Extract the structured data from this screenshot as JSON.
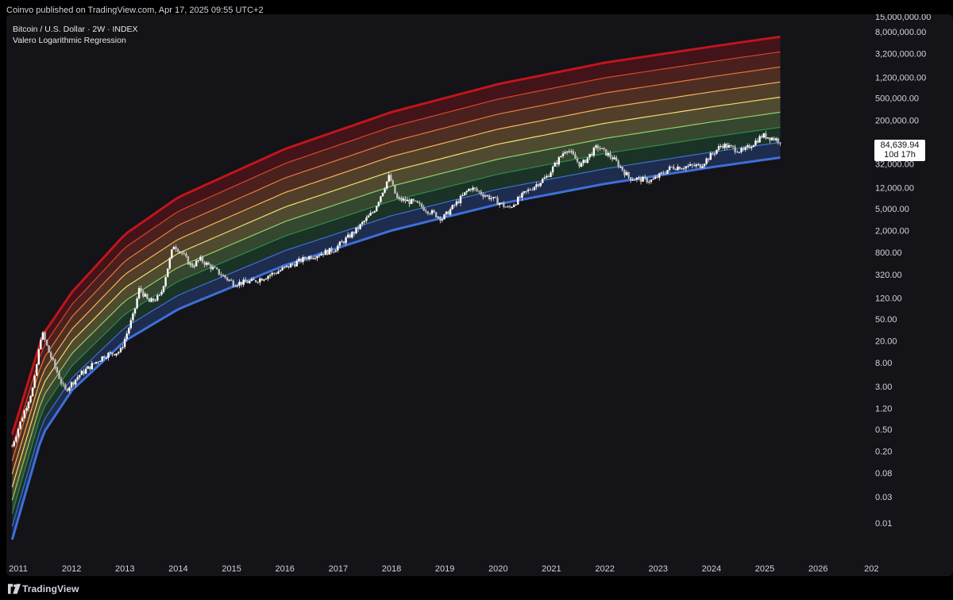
{
  "header": {
    "publisher_line": "Coinvo published on TradingView.com, Apr 17, 2025 09:55 UTC+2"
  },
  "legend": {
    "symbol": "Bitcoin / U.S. Dollar · 2W · INDEX",
    "indicator": "Valero Logarithmic Regression"
  },
  "price_tag": {
    "price": "84,639.94",
    "countdown": "10d 17h"
  },
  "footer": {
    "brand": "TradingView"
  },
  "colors": {
    "background": "#131318",
    "candles": "#ffffff",
    "band_colors": [
      "#3e6fd8",
      "#2f8a4a",
      "#8fcf6a",
      "#f0e070",
      "#f3b45a",
      "#e9783c",
      "#d9452c",
      "#c0151b"
    ]
  },
  "chart_data": {
    "type": "line",
    "title": "Bitcoin / U.S. Dollar · 2W · INDEX",
    "xlabel": "",
    "ylabel": "",
    "y_scale": "log",
    "ylim": [
      0.005,
      15000000
    ],
    "xlim": [
      "2010-11-20",
      "2026-11-01"
    ],
    "x_ticks": [
      "2011",
      "2012",
      "2013",
      "2014",
      "2015",
      "2016",
      "2017",
      "2018",
      "2019",
      "2020",
      "2021",
      "2022",
      "2023",
      "2024",
      "2025",
      "2026",
      "202"
    ],
    "y_ticks": [
      "15,000,000.00",
      "8,000,000.00",
      "3,200,000.00",
      "1,200,000.00",
      "500,000.00",
      "200,000.00",
      "32,000.00",
      "12,000.00",
      "5,000.00",
      "2,000.00",
      "800.00",
      "320.00",
      "120.00",
      "50.00",
      "20.00",
      "8.00",
      "3.00",
      "1.20",
      "0.50",
      "0.20",
      "0.08",
      "0.03",
      "0.01"
    ],
    "y_tick_values": [
      15000000,
      8000000,
      3200000,
      1200000,
      500000,
      200000,
      32000,
      12000,
      5000,
      2000,
      800,
      320,
      120,
      50,
      20,
      8,
      3,
      1.2,
      0.5,
      0.2,
      0.08,
      0.03,
      0.01
    ],
    "bands": {
      "description_visible": false,
      "upper_line_points": [
        {
          "x": "2010-11-20",
          "y": 0.4
        },
        {
          "x": "2011-06-15",
          "y": 25
        },
        {
          "x": "2012-01-01",
          "y": 150
        },
        {
          "x": "2013-01-01",
          "y": 1700
        },
        {
          "x": "2014-01-01",
          "y": 8000
        },
        {
          "x": "2016-01-01",
          "y": 60000
        },
        {
          "x": "2018-01-01",
          "y": 280000
        },
        {
          "x": "2020-01-01",
          "y": 900000
        },
        {
          "x": "2022-01-01",
          "y": 2200000
        },
        {
          "x": "2024-01-01",
          "y": 4300000
        },
        {
          "x": "2025-04-17",
          "y": 6500000
        }
      ],
      "lower_line_points": [
        {
          "x": "2010-11-20",
          "y": 0.005
        },
        {
          "x": "2011-06-15",
          "y": 0.4
        },
        {
          "x": "2012-01-01",
          "y": 2.5
        },
        {
          "x": "2013-01-01",
          "y": 20
        },
        {
          "x": "2014-01-01",
          "y": 75
        },
        {
          "x": "2016-01-01",
          "y": 470
        },
        {
          "x": "2018-01-01",
          "y": 2000
        },
        {
          "x": "2020-01-01",
          "y": 6000
        },
        {
          "x": "2022-01-01",
          "y": 14000
        },
        {
          "x": "2024-01-01",
          "y": 28000
        },
        {
          "x": "2025-04-17",
          "y": 42000
        }
      ],
      "band_count": 8
    },
    "series": [
      {
        "type": "candles-approx",
        "points": [
          {
            "x": "2010-11-20",
            "y": 0.25
          },
          {
            "x": "2011-02-01",
            "y": 0.9
          },
          {
            "x": "2011-04-15",
            "y": 3
          },
          {
            "x": "2011-06-10",
            "y": 30
          },
          {
            "x": "2011-08-01",
            "y": 12
          },
          {
            "x": "2011-11-15",
            "y": 2.5
          },
          {
            "x": "2012-03-01",
            "y": 5
          },
          {
            "x": "2012-08-15",
            "y": 11
          },
          {
            "x": "2012-12-01",
            "y": 13
          },
          {
            "x": "2013-03-01",
            "y": 60
          },
          {
            "x": "2013-04-10",
            "y": 180
          },
          {
            "x": "2013-06-15",
            "y": 100
          },
          {
            "x": "2013-09-01",
            "y": 130
          },
          {
            "x": "2013-11-30",
            "y": 1100
          },
          {
            "x": "2014-01-15",
            "y": 850
          },
          {
            "x": "2014-04-01",
            "y": 450
          },
          {
            "x": "2014-06-01",
            "y": 600
          },
          {
            "x": "2015-01-15",
            "y": 220
          },
          {
            "x": "2015-06-01",
            "y": 240
          },
          {
            "x": "2015-11-01",
            "y": 350
          },
          {
            "x": "2016-06-01",
            "y": 650
          },
          {
            "x": "2016-12-01",
            "y": 900
          },
          {
            "x": "2017-05-01",
            "y": 2000
          },
          {
            "x": "2017-09-01",
            "y": 4500
          },
          {
            "x": "2017-12-17",
            "y": 19500
          },
          {
            "x": "2018-02-06",
            "y": 7500
          },
          {
            "x": "2018-06-01",
            "y": 6500
          },
          {
            "x": "2018-12-15",
            "y": 3300
          },
          {
            "x": "2019-06-25",
            "y": 12000
          },
          {
            "x": "2019-12-15",
            "y": 7000
          },
          {
            "x": "2020-03-12",
            "y": 5000
          },
          {
            "x": "2020-07-01",
            "y": 9500
          },
          {
            "x": "2020-12-01",
            "y": 19000
          },
          {
            "x": "2021-04-14",
            "y": 63000
          },
          {
            "x": "2021-07-20",
            "y": 30000
          },
          {
            "x": "2021-11-10",
            "y": 67000
          },
          {
            "x": "2022-03-01",
            "y": 40000
          },
          {
            "x": "2022-06-18",
            "y": 18000
          },
          {
            "x": "2022-11-20",
            "y": 16000
          },
          {
            "x": "2023-04-01",
            "y": 28000
          },
          {
            "x": "2023-10-15",
            "y": 30000
          },
          {
            "x": "2024-03-14",
            "y": 72000
          },
          {
            "x": "2024-08-05",
            "y": 54000
          },
          {
            "x": "2024-12-17",
            "y": 106000
          },
          {
            "x": "2025-02-15",
            "y": 96000
          },
          {
            "x": "2025-04-17",
            "y": 84639.94
          }
        ]
      }
    ],
    "legend": "top-left",
    "grid": false
  }
}
